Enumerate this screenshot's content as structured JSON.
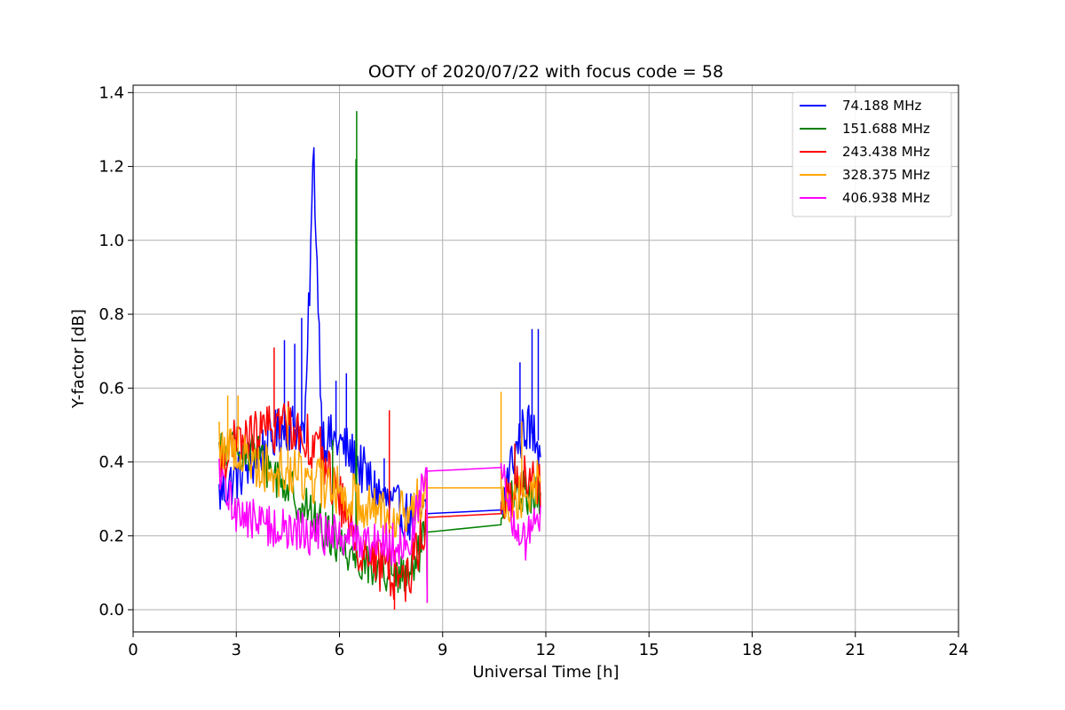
{
  "chart_data": {
    "type": "line",
    "title": "OOTY of 2020/07/22 with focus code = 58",
    "xlabel": "Universal Time [h]",
    "ylabel": "Y-factor [dB]",
    "xlim": [
      0,
      24
    ],
    "ylim": [
      -0.06,
      1.42
    ],
    "xticks": [
      0,
      3,
      6,
      9,
      12,
      15,
      18,
      21,
      24
    ],
    "xtick_labels": [
      "0",
      "3",
      "6",
      "9",
      "12",
      "15",
      "18",
      "21",
      "24"
    ],
    "yticks": [
      0.0,
      0.2,
      0.4,
      0.6,
      0.8,
      1.0,
      1.2,
      1.4
    ],
    "ytick_labels": [
      "0.0",
      "0.2",
      "0.4",
      "0.6",
      "0.8",
      "1.0",
      "1.2",
      "1.4"
    ],
    "grid": true,
    "legend_position": "top-right",
    "series": [
      {
        "name": " 74.188 MHz",
        "color": "#0000ff",
        "x": [
          2.5,
          3.0,
          3.5,
          4.0,
          4.5,
          5.0,
          5.25,
          5.5,
          6.0,
          6.5,
          7.0,
          7.5,
          8.0,
          8.55,
          10.7,
          11.0,
          11.4,
          11.85
        ],
        "y": [
          0.31,
          0.36,
          0.4,
          0.46,
          0.5,
          0.48,
          1.24,
          0.47,
          0.45,
          0.4,
          0.33,
          0.28,
          0.25,
          0.26,
          0.27,
          0.4,
          0.5,
          0.45
        ],
        "noise": 0.07,
        "spikes": [
          [
            4.4,
            0.73
          ],
          [
            4.7,
            0.72
          ],
          [
            4.9,
            0.79
          ],
          [
            5.25,
            1.24
          ],
          [
            5.9,
            0.62
          ],
          [
            6.2,
            0.64
          ],
          [
            7.3,
            0.41
          ],
          [
            11.25,
            0.67
          ],
          [
            11.6,
            0.76
          ],
          [
            11.78,
            0.76
          ]
        ]
      },
      {
        "name": "151.688 MHz",
        "color": "#008000",
        "x": [
          2.5,
          3.0,
          3.5,
          4.0,
          4.5,
          5.0,
          5.5,
          6.0,
          6.5,
          7.0,
          7.5,
          8.0,
          8.55,
          10.7,
          11.0,
          11.4,
          11.85
        ],
        "y": [
          0.42,
          0.44,
          0.43,
          0.38,
          0.33,
          0.28,
          0.22,
          0.18,
          0.14,
          0.12,
          0.1,
          0.08,
          0.21,
          0.23,
          0.3,
          0.32,
          0.3
        ],
        "noise": 0.06,
        "spikes": [
          [
            6.5,
            1.35
          ],
          [
            6.48,
            1.22
          ],
          [
            5.8,
            0.46
          ],
          [
            11.1,
            0.44
          ]
        ]
      },
      {
        "name": "243.438 MHz",
        "color": "#ff0000",
        "x": [
          2.5,
          3.0,
          3.5,
          4.0,
          4.5,
          5.0,
          5.5,
          6.0,
          6.5,
          7.0,
          7.5,
          8.0,
          8.55,
          10.7,
          11.0,
          11.4,
          11.85
        ],
        "y": [
          0.4,
          0.45,
          0.47,
          0.49,
          0.51,
          0.47,
          0.42,
          0.3,
          0.18,
          0.13,
          0.1,
          0.09,
          0.25,
          0.26,
          0.32,
          0.35,
          0.34
        ],
        "noise": 0.07,
        "spikes": [
          [
            4.1,
            0.71
          ],
          [
            7.45,
            0.54
          ],
          [
            7.6,
            0.0
          ],
          [
            11.1,
            0.45
          ]
        ]
      },
      {
        "name": "328.375 MHz",
        "color": "#ffa500",
        "x": [
          2.5,
          3.0,
          3.5,
          4.0,
          4.5,
          5.0,
          5.5,
          6.0,
          6.5,
          7.0,
          7.5,
          8.0,
          8.55,
          10.7,
          11.0,
          11.4,
          11.85
        ],
        "y": [
          0.45,
          0.43,
          0.4,
          0.38,
          0.37,
          0.36,
          0.34,
          0.32,
          0.3,
          0.28,
          0.27,
          0.25,
          0.33,
          0.33,
          0.3,
          0.32,
          0.35
        ],
        "noise": 0.07,
        "spikes": [
          [
            2.75,
            0.58
          ],
          [
            3.05,
            0.58
          ],
          [
            4.5,
            0.55
          ],
          [
            10.7,
            0.59
          ],
          [
            11.3,
            0.51
          ]
        ]
      },
      {
        "name": "406.938 MHz",
        "color": "#ff00ff",
        "x": [
          2.5,
          3.0,
          3.5,
          4.0,
          4.5,
          5.0,
          5.5,
          6.0,
          6.5,
          7.0,
          7.5,
          8.0,
          8.55,
          10.7,
          11.0,
          11.4,
          11.85
        ],
        "y": [
          0.35,
          0.27,
          0.24,
          0.23,
          0.21,
          0.21,
          0.2,
          0.2,
          0.19,
          0.19,
          0.18,
          0.17,
          0.375,
          0.385,
          0.25,
          0.18,
          0.24
        ],
        "noise": 0.06,
        "spikes": []
      }
    ]
  }
}
